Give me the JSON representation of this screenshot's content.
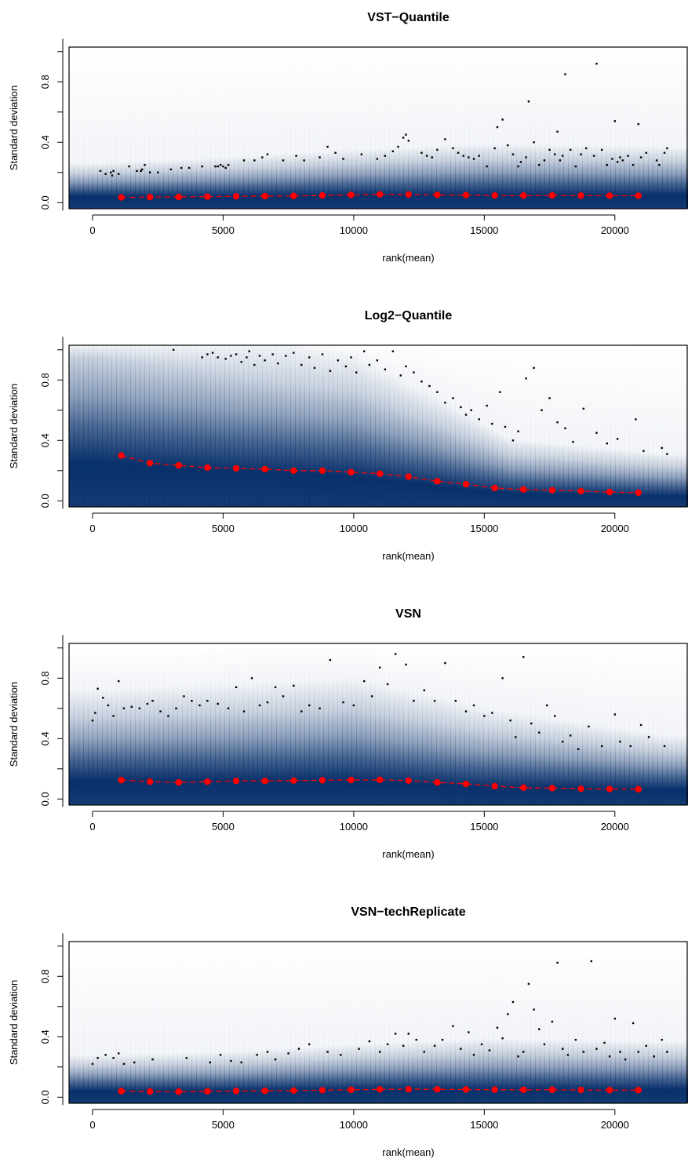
{
  "chart_data": [
    {
      "type": "scatter",
      "title": "VST−Quantile",
      "xlabel": "rank(mean)",
      "ylabel": "Standard deviation",
      "xlim": [
        -900,
        22800
      ],
      "ylim": [
        -0.04,
        1.03
      ],
      "x_ticks": [
        0,
        5000,
        10000,
        15000,
        20000
      ],
      "y_ticks": [
        0.0,
        0.4,
        0.8
      ],
      "y_tick_labels": [
        "0.0",
        "0.4",
        "0.8"
      ],
      "colors": {
        "density": "#08306b",
        "trend": "#ff0000",
        "points": "#000000"
      },
      "density_profile": {
        "x": [
          0,
          5000,
          10000,
          15000,
          22000
        ],
        "center": [
          0.04,
          0.04,
          0.05,
          0.05,
          0.05
        ],
        "spread": [
          0.11,
          0.13,
          0.15,
          0.17,
          0.16
        ]
      },
      "trend": {
        "x": [
          1100,
          2200,
          3300,
          4400,
          5500,
          6600,
          7700,
          8800,
          9900,
          11000,
          12100,
          13200,
          14300,
          15400,
          16500,
          17600,
          18700,
          19800,
          20900
        ],
        "y": [
          0.035,
          0.037,
          0.038,
          0.04,
          0.042,
          0.043,
          0.045,
          0.048,
          0.052,
          0.055,
          0.054,
          0.052,
          0.05,
          0.048,
          0.047,
          0.048,
          0.047,
          0.046,
          0.046
        ]
      },
      "outliers": {
        "x": [
          300,
          500,
          700,
          750,
          800,
          1000,
          1400,
          1700,
          1850,
          1900,
          2000,
          2200,
          2500,
          3000,
          3400,
          3700,
          4200,
          4700,
          4800,
          4900,
          5000,
          5100,
          5200,
          5800,
          6200,
          6500,
          6700,
          7300,
          7800,
          8100,
          8700,
          9000,
          9300,
          9600,
          10300,
          10900,
          11200,
          11500,
          11700,
          11900,
          12000,
          12100,
          12600,
          12800,
          13000,
          13200,
          13500,
          13800,
          14000,
          14200,
          14400,
          14600,
          14800,
          15100,
          15400,
          15500,
          15700,
          15900,
          16100,
          16300,
          16400,
          16600,
          16700,
          16900,
          17100,
          17300,
          17500,
          17700,
          17800,
          17900,
          18000,
          18100,
          18300,
          18500,
          18700,
          18900,
          19200,
          19300,
          19500,
          19700,
          19900,
          20000,
          20100,
          20200,
          20300,
          20500,
          20700,
          20900,
          21000,
          21200,
          21600,
          21700,
          21900,
          22000
        ],
        "y": [
          0.21,
          0.19,
          0.2,
          0.18,
          0.21,
          0.19,
          0.24,
          0.21,
          0.21,
          0.22,
          0.25,
          0.2,
          0.2,
          0.22,
          0.23,
          0.23,
          0.24,
          0.24,
          0.24,
          0.25,
          0.24,
          0.23,
          0.25,
          0.28,
          0.28,
          0.3,
          0.32,
          0.28,
          0.31,
          0.28,
          0.3,
          0.37,
          0.33,
          0.29,
          0.32,
          0.29,
          0.31,
          0.34,
          0.37,
          0.43,
          0.45,
          0.41,
          0.33,
          0.31,
          0.3,
          0.35,
          0.42,
          0.36,
          0.33,
          0.31,
          0.3,
          0.29,
          0.31,
          0.24,
          0.36,
          0.5,
          0.55,
          0.38,
          0.32,
          0.24,
          0.27,
          0.3,
          0.67,
          0.4,
          0.25,
          0.28,
          0.35,
          0.32,
          0.47,
          0.28,
          0.31,
          0.85,
          0.35,
          0.24,
          0.32,
          0.36,
          0.31,
          0.92,
          0.35,
          0.25,
          0.29,
          0.54,
          0.27,
          0.3,
          0.28,
          0.31,
          0.25,
          0.52,
          0.3,
          0.33,
          0.28,
          0.25,
          0.33,
          0.36
        ]
      }
    },
    {
      "type": "scatter",
      "title": "Log2−Quantile",
      "xlabel": "rank(mean)",
      "ylabel": "Standard deviation",
      "xlim": [
        -900,
        22800
      ],
      "ylim": [
        -0.04,
        1.03
      ],
      "x_ticks": [
        0,
        5000,
        10000,
        15000,
        20000
      ],
      "y_ticks": [
        0.0,
        0.4,
        0.8
      ],
      "y_tick_labels": [
        "0.0",
        "0.4",
        "0.8"
      ],
      "colors": {
        "density": "#08306b",
        "trend": "#ff0000",
        "points": "#000000"
      },
      "density_profile": {
        "x": [
          0,
          5000,
          10000,
          13000,
          16000,
          22000
        ],
        "center": [
          0.25,
          0.2,
          0.16,
          0.1,
          0.05,
          0.03
        ],
        "spread": [
          0.5,
          0.45,
          0.4,
          0.3,
          0.18,
          0.14
        ]
      },
      "trend": {
        "x": [
          1100,
          2200,
          3300,
          4400,
          5500,
          6600,
          7700,
          8800,
          9900,
          11000,
          12100,
          13200,
          14300,
          15400,
          16500,
          17600,
          18700,
          19800,
          20900
        ],
        "y": [
          0.3,
          0.25,
          0.235,
          0.22,
          0.215,
          0.21,
          0.2,
          0.2,
          0.19,
          0.18,
          0.16,
          0.13,
          0.11,
          0.085,
          0.075,
          0.07,
          0.065,
          0.058,
          0.054
        ]
      },
      "outliers": {
        "x": [
          3100,
          4200,
          4400,
          4600,
          4800,
          5100,
          5300,
          5500,
          5700,
          5900,
          6000,
          6200,
          6400,
          6600,
          6900,
          7100,
          7400,
          7700,
          8000,
          8300,
          8500,
          8800,
          9100,
          9400,
          9700,
          9900,
          10100,
          10400,
          10600,
          10900,
          11200,
          11500,
          11800,
          12000,
          12300,
          12600,
          12900,
          13200,
          13500,
          13800,
          14100,
          14300,
          14500,
          14800,
          15100,
          15300,
          15600,
          15800,
          16100,
          16300,
          16600,
          16900,
          17200,
          17500,
          17800,
          18100,
          18400,
          18800,
          19300,
          19700,
          20100,
          20800,
          21100,
          21800,
          22000
        ],
        "y": [
          1.0,
          0.95,
          0.97,
          0.98,
          0.95,
          0.94,
          0.96,
          0.97,
          0.92,
          0.95,
          0.99,
          0.9,
          0.96,
          0.93,
          0.97,
          0.91,
          0.96,
          0.98,
          0.9,
          0.95,
          0.88,
          0.97,
          0.86,
          0.93,
          0.89,
          0.95,
          0.85,
          0.99,
          0.9,
          0.93,
          0.87,
          0.99,
          0.83,
          0.89,
          0.85,
          0.79,
          0.76,
          0.72,
          0.65,
          0.68,
          0.62,
          0.57,
          0.6,
          0.54,
          0.63,
          0.51,
          0.72,
          0.49,
          0.4,
          0.46,
          0.81,
          0.88,
          0.6,
          0.68,
          0.52,
          0.48,
          0.39,
          0.61,
          0.45,
          0.38,
          0.41,
          0.54,
          0.33,
          0.35,
          0.31
        ]
      }
    },
    {
      "type": "scatter",
      "title": "VSN",
      "xlabel": "rank(mean)",
      "ylabel": "Standard deviation",
      "xlim": [
        -900,
        22800
      ],
      "ylim": [
        -0.04,
        1.03
      ],
      "x_ticks": [
        0,
        5000,
        10000,
        15000,
        20000
      ],
      "y_ticks": [
        0.0,
        0.4,
        0.8
      ],
      "y_tick_labels": [
        "0.0",
        "0.4",
        "0.8"
      ],
      "colors": {
        "density": "#08306b",
        "trend": "#ff0000",
        "points": "#000000"
      },
      "density_profile": {
        "x": [
          0,
          5000,
          10000,
          15000,
          22000
        ],
        "center": [
          0.12,
          0.12,
          0.12,
          0.08,
          0.06
        ],
        "spread": [
          0.3,
          0.32,
          0.34,
          0.26,
          0.18
        ]
      },
      "trend": {
        "x": [
          1100,
          2200,
          3300,
          4400,
          5500,
          6600,
          7700,
          8800,
          9900,
          11000,
          12100,
          13200,
          14300,
          15400,
          16500,
          17600,
          18700,
          19800,
          20900
        ],
        "y": [
          0.125,
          0.115,
          0.11,
          0.115,
          0.12,
          0.12,
          0.122,
          0.124,
          0.126,
          0.127,
          0.122,
          0.11,
          0.1,
          0.085,
          0.075,
          0.072,
          0.068,
          0.066,
          0.065
        ]
      },
      "outliers": {
        "x": [
          0,
          100,
          200,
          400,
          600,
          800,
          1000,
          1200,
          1500,
          1800,
          2100,
          2300,
          2600,
          2900,
          3200,
          3500,
          3800,
          4100,
          4400,
          4800,
          5200,
          5500,
          5800,
          6100,
          6400,
          6700,
          7000,
          7300,
          7700,
          8000,
          8300,
          8700,
          9100,
          9600,
          10000,
          10400,
          10700,
          11000,
          11300,
          11600,
          12000,
          12300,
          12700,
          13100,
          13500,
          13900,
          14300,
          14600,
          15000,
          15300,
          15700,
          16000,
          16200,
          16500,
          16800,
          17100,
          17400,
          17700,
          18000,
          18300,
          18600,
          19000,
          19500,
          20000,
          20200,
          20600,
          21000,
          21300,
          21900
        ],
        "y": [
          0.52,
          0.57,
          0.73,
          0.67,
          0.62,
          0.55,
          0.78,
          0.6,
          0.61,
          0.6,
          0.63,
          0.65,
          0.58,
          0.55,
          0.6,
          0.68,
          0.65,
          0.62,
          0.65,
          0.63,
          0.6,
          0.74,
          0.58,
          0.8,
          0.62,
          0.64,
          0.74,
          0.68,
          0.75,
          0.58,
          0.62,
          0.6,
          0.92,
          0.64,
          0.62,
          0.78,
          0.68,
          0.87,
          0.76,
          0.96,
          0.89,
          0.65,
          0.72,
          0.65,
          0.9,
          0.65,
          0.58,
          0.62,
          0.55,
          0.57,
          0.8,
          0.52,
          0.41,
          0.94,
          0.5,
          0.44,
          0.62,
          0.55,
          0.38,
          0.42,
          0.33,
          0.48,
          0.35,
          0.56,
          0.38,
          0.35,
          0.49,
          0.41,
          0.35
        ]
      }
    },
    {
      "type": "scatter",
      "title": "VSN−techReplicate",
      "xlabel": "rank(mean)",
      "ylabel": "Standard deviation",
      "xlim": [
        -900,
        22800
      ],
      "ylim": [
        -0.04,
        1.03
      ],
      "x_ticks": [
        0,
        5000,
        10000,
        15000,
        20000
      ],
      "y_ticks": [
        0.0,
        0.4,
        0.8
      ],
      "y_tick_labels": [
        "0.0",
        "0.4",
        "0.8"
      ],
      "colors": {
        "density": "#08306b",
        "trend": "#ff0000",
        "points": "#000000"
      },
      "density_profile": {
        "x": [
          0,
          5000,
          10000,
          15000,
          22000
        ],
        "center": [
          0.04,
          0.04,
          0.05,
          0.05,
          0.05
        ],
        "spread": [
          0.12,
          0.13,
          0.15,
          0.17,
          0.16
        ]
      },
      "trend": {
        "x": [
          1100,
          2200,
          3300,
          4400,
          5500,
          6600,
          7700,
          8800,
          9900,
          11000,
          12100,
          13200,
          14300,
          15400,
          16500,
          17600,
          18700,
          19800,
          20900
        ],
        "y": [
          0.04,
          0.038,
          0.037,
          0.039,
          0.041,
          0.042,
          0.044,
          0.046,
          0.049,
          0.052,
          0.053,
          0.052,
          0.051,
          0.05,
          0.049,
          0.049,
          0.048,
          0.047,
          0.047
        ]
      },
      "outliers": {
        "x": [
          0,
          200,
          500,
          800,
          1000,
          1200,
          1600,
          2300,
          3600,
          4500,
          4900,
          5300,
          5700,
          6300,
          6700,
          7000,
          7500,
          7900,
          8300,
          9000,
          9500,
          10200,
          10600,
          11000,
          11300,
          11600,
          11900,
          12100,
          12400,
          12700,
          13100,
          13400,
          13800,
          14100,
          14400,
          14600,
          14900,
          15200,
          15500,
          15700,
          15900,
          16100,
          16300,
          16500,
          16700,
          16900,
          17100,
          17300,
          17600,
          17800,
          18000,
          18200,
          18500,
          18800,
          19100,
          19300,
          19600,
          19800,
          20000,
          20200,
          20400,
          20700,
          20900,
          21200,
          21500,
          21800,
          22000
        ],
        "y": [
          0.22,
          0.26,
          0.28,
          0.26,
          0.29,
          0.22,
          0.23,
          0.25,
          0.26,
          0.23,
          0.28,
          0.24,
          0.23,
          0.28,
          0.3,
          0.25,
          0.29,
          0.32,
          0.35,
          0.3,
          0.28,
          0.32,
          0.37,
          0.3,
          0.35,
          0.42,
          0.34,
          0.42,
          0.38,
          0.3,
          0.34,
          0.38,
          0.47,
          0.32,
          0.43,
          0.28,
          0.35,
          0.31,
          0.46,
          0.39,
          0.55,
          0.63,
          0.27,
          0.3,
          0.75,
          0.58,
          0.45,
          0.35,
          0.5,
          0.89,
          0.32,
          0.28,
          0.38,
          0.3,
          0.9,
          0.32,
          0.36,
          0.27,
          0.52,
          0.3,
          0.25,
          0.49,
          0.3,
          0.34,
          0.27,
          0.38,
          0.3
        ]
      }
    }
  ]
}
